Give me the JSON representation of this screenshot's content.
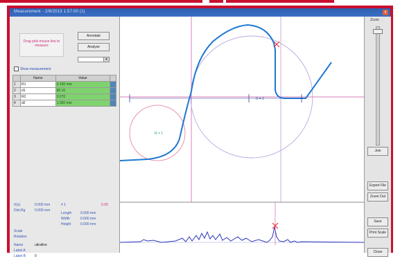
{
  "window": {
    "title": "Measurement - 2/8/2013 1:57:00 (1)",
    "close_label": "x"
  },
  "left_panel": {
    "message": "Drag pink mouse line to measure",
    "button_1": "Annotate",
    "button_2": "Analyse",
    "checkbox_label": "Show measurement",
    "table": {
      "headers": [
        "",
        "Name",
        "Value",
        ""
      ],
      "rows": [
        {
          "num": "1",
          "name": "R1",
          "value": "0.160 mm"
        },
        {
          "num": "2",
          "name": "d1",
          "value": "80.10"
        },
        {
          "num": "3",
          "name": "R2",
          "value": "0.270"
        },
        {
          "num": "4",
          "name": "d2",
          "value": "1.060 mm"
        }
      ]
    },
    "stats": {
      "x_label": "X(s)",
      "x_value": "0.000 mm",
      "dy_label": "Dist.Rg",
      "dy_value": "0.000 mm",
      "n_label": "# 1",
      "red_value": "0.00",
      "length_label": "Length",
      "length_value": "0.000 mm",
      "width_label": "Width",
      "width_value": "0.000 mm",
      "height_label": "Height",
      "height_value": "0.000 mm",
      "scale_label": "Scale",
      "rotation_label": "Rotation",
      "name_label": "Name",
      "name_value": "ultrafine",
      "label_1": "Label A",
      "label_2": "Label B",
      "label_2_value": "0"
    }
  },
  "right_panel": {
    "slider_label": "Zoom",
    "btn_1": "Join",
    "btn_2": "Export File",
    "btn_3": "Zoom Out",
    "btn_4": "Save",
    "btn_5": "Print Scale",
    "btn_6": "Close"
  },
  "plot": {
    "center_label_1": "R = 1",
    "center_label_2": "R = 2",
    "colors": {
      "profile": "#1e78d0",
      "circle": "#b7a8df",
      "guide": "#c94fa3",
      "small_circle": "#e07a9a",
      "marker": "#e8252e",
      "residual": "#2b35b8"
    }
  }
}
